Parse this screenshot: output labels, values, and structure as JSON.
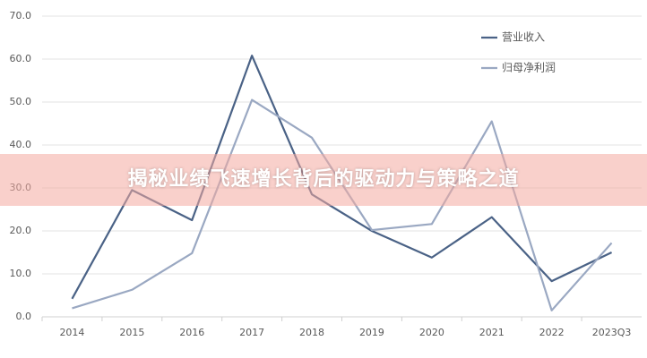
{
  "banner_title": "揭秘业绩飞速增长背后的驱动力与策略之道",
  "chart_data": {
    "type": "line",
    "categories": [
      "2014",
      "2015",
      "2016",
      "2017",
      "2018",
      "2019",
      "2020",
      "2021",
      "2022",
      "2023Q3"
    ],
    "series": [
      {
        "name": "营业收入",
        "color": "#4a6286",
        "values": [
          4.2,
          29.5,
          22.5,
          60.8,
          28.5,
          20.0,
          13.8,
          23.2,
          8.3,
          15.0
        ]
      },
      {
        "name": "归母净利润",
        "color": "#9aa8c2",
        "values": [
          2.0,
          6.3,
          14.8,
          50.5,
          41.7,
          20.2,
          21.6,
          45.5,
          1.5,
          17.2
        ]
      }
    ],
    "ylim": [
      0,
      70
    ],
    "yticks": [
      {
        "value": 0,
        "label": "0.0"
      },
      {
        "value": 10,
        "label": "10.0"
      },
      {
        "value": 20,
        "label": "20.0"
      },
      {
        "value": 30,
        "label": "30.0"
      },
      {
        "value": 40,
        "label": "40.0"
      },
      {
        "value": 50,
        "label": "50.0"
      },
      {
        "value": 60,
        "label": "60.0"
      },
      {
        "value": 70,
        "label": "70.0"
      }
    ],
    "grid": true,
    "legend": "top-right"
  }
}
